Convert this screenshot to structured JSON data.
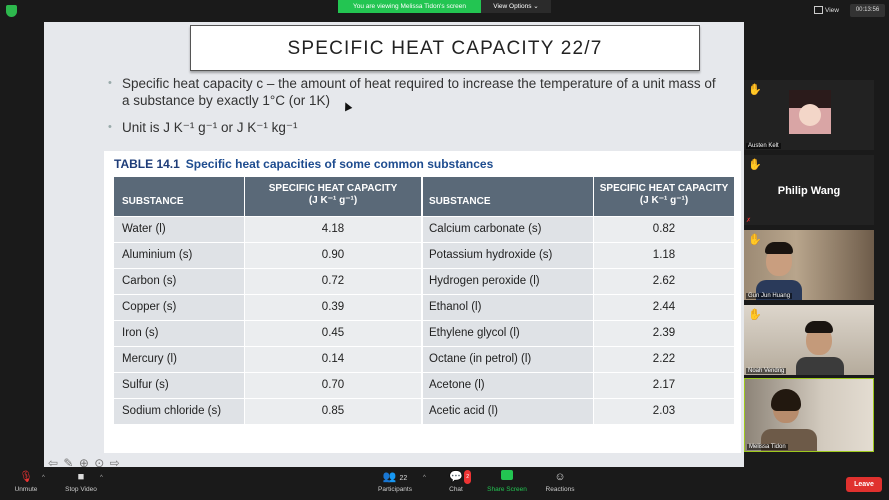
{
  "topbar": {
    "viewing_text": "You are viewing Melissa Tidon's screen",
    "view_options": "View Options",
    "view_label": "View",
    "timer": "00:13:56"
  },
  "slide": {
    "title": "SPECIFIC HEAT CAPACITY 22/7",
    "bullet1": "Specific heat capacity c – the amount of heat required to increase the temperature of a unit mass of a substance by exactly 1°C (or 1K)",
    "bullet2": "Unit is J K⁻¹ g⁻¹ or J K⁻¹ kg⁻¹",
    "table_label": "TABLE 14.1",
    "table_caption": "Specific heat capacities of some common substances",
    "headers": {
      "substance": "SUBSTANCE",
      "shc_line1": "SPECIFIC HEAT CAPACITY",
      "shc_line2": "(J K⁻¹ g⁻¹)"
    },
    "rows": [
      {
        "s1": "Water (l)",
        "v1": "4.18",
        "s2": "Calcium carbonate (s)",
        "v2": "0.82"
      },
      {
        "s1": "Aluminium (s)",
        "v1": "0.90",
        "s2": "Potassium hydroxide (s)",
        "v2": "1.18"
      },
      {
        "s1": "Carbon (s)",
        "v1": "0.72",
        "s2": "Hydrogen peroxide (l)",
        "v2": "2.62"
      },
      {
        "s1": "Copper (s)",
        "v1": "0.39",
        "s2": "Ethanol (l)",
        "v2": "2.44"
      },
      {
        "s1": "Iron (s)",
        "v1": "0.45",
        "s2": "Ethylene glycol (l)",
        "v2": "2.39"
      },
      {
        "s1": "Mercury (l)",
        "v1": "0.14",
        "s2": "Octane (in petrol) (l)",
        "v2": "2.22"
      },
      {
        "s1": "Sulfur (s)",
        "v1": "0.70",
        "s2": "Acetone (l)",
        "v2": "2.17"
      },
      {
        "s1": "Sodium chloride (s)",
        "v1": "0.85",
        "s2": "Acetic acid (l)",
        "v2": "2.03"
      }
    ]
  },
  "participants_panel": {
    "tiles": [
      {
        "name": "Austen Kelt"
      },
      {
        "name": "Philip Wang"
      },
      {
        "name": "Gun Jun Huang"
      },
      {
        "name": "Noah Vendrig"
      },
      {
        "name": "Melissa Tidon"
      }
    ]
  },
  "bottombar": {
    "unmute": "Unmute",
    "stop_video": "Stop Video",
    "participants": "Participants",
    "participants_count": "22",
    "chat": "Chat",
    "chat_badge": "2",
    "share_screen": "Share Screen",
    "reactions": "Reactions",
    "leave": "Leave"
  },
  "colors": {
    "zoom_green": "#23c552",
    "leave_red": "#e0312e",
    "caption_blue": "#1e4c8f",
    "header_grey": "#5a6978"
  }
}
